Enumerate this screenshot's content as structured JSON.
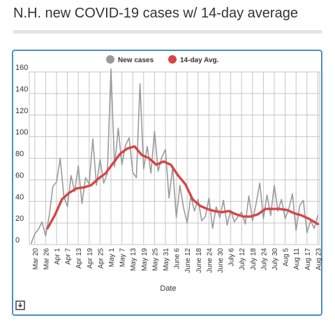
{
  "page": {
    "title": "N.H. new COVID-19 cases w/ 14-day average"
  },
  "icons": {
    "download": "download-icon"
  },
  "colors": {
    "frame": "#4a90c4",
    "new_cases": "#9a9a9a",
    "avg": "#d64545",
    "grid": "#c4c4c4",
    "title_rule": "#e3e3e3"
  },
  "chart_data": {
    "type": "line",
    "xlabel": "Date",
    "ylabel": "",
    "ylim": [
      0,
      160
    ],
    "yticks": [
      0,
      20,
      40,
      60,
      80,
      100,
      120,
      140,
      160
    ],
    "xlim": [
      "2020-03-17",
      "2020-08-24"
    ],
    "tick_dates": [
      "2020-03-20",
      "2020-03-26",
      "2020-04-01",
      "2020-04-07",
      "2020-04-13",
      "2020-04-19",
      "2020-04-25",
      "2020-05-01",
      "2020-05-07",
      "2020-05-13",
      "2020-05-19",
      "2020-05-25",
      "2020-05-31",
      "2020-06-06",
      "2020-06-12",
      "2020-06-18",
      "2020-06-24",
      "2020-06-30",
      "2020-07-06",
      "2020-07-12",
      "2020-07-18",
      "2020-07-24",
      "2020-07-30",
      "2020-08-05",
      "2020-08-11",
      "2020-08-17",
      "2020-08-23"
    ],
    "tick_labels": [
      "Mar 20",
      "Mar 26",
      "Apr 1",
      "Apr 7",
      "Apr 13",
      "Apr 19",
      "Apr 25",
      "May 1",
      "May 7",
      "May 13",
      "May 19",
      "May 25",
      "May 31",
      "June 6",
      "June 12",
      "June 18",
      "June 24",
      "June 30",
      "July 6",
      "July 12",
      "July 18",
      "July 24",
      "July 30",
      "Aug 5",
      "Aug 11",
      "Aug 17",
      "Aug 23"
    ],
    "grid": true,
    "legend_position": "top",
    "series": [
      {
        "name": "New cases",
        "color": "#9a9a9a",
        "points": [
          [
            "2020-03-18",
            1
          ],
          [
            "2020-03-20",
            10
          ],
          [
            "2020-03-22",
            14
          ],
          [
            "2020-03-24",
            21
          ],
          [
            "2020-03-26",
            8
          ],
          [
            "2020-03-28",
            27
          ],
          [
            "2020-03-30",
            54
          ],
          [
            "2020-04-01",
            58
          ],
          [
            "2020-04-03",
            80
          ],
          [
            "2020-04-05",
            45
          ],
          [
            "2020-04-07",
            35
          ],
          [
            "2020-04-09",
            64
          ],
          [
            "2020-04-11",
            49
          ],
          [
            "2020-04-13",
            73
          ],
          [
            "2020-04-15",
            38
          ],
          [
            "2020-04-17",
            62
          ],
          [
            "2020-04-19",
            56
          ],
          [
            "2020-04-21",
            98
          ],
          [
            "2020-04-23",
            55
          ],
          [
            "2020-04-25",
            79
          ],
          [
            "2020-04-27",
            57
          ],
          [
            "2020-04-29",
            66
          ],
          [
            "2020-05-01",
            163
          ],
          [
            "2020-05-03",
            72
          ],
          [
            "2020-05-05",
            108
          ],
          [
            "2020-05-07",
            74
          ],
          [
            "2020-05-09",
            92
          ],
          [
            "2020-05-11",
            99
          ],
          [
            "2020-05-13",
            67
          ],
          [
            "2020-05-15",
            62
          ],
          [
            "2020-05-17",
            149
          ],
          [
            "2020-05-19",
            70
          ],
          [
            "2020-05-21",
            91
          ],
          [
            "2020-05-23",
            66
          ],
          [
            "2020-05-25",
            105
          ],
          [
            "2020-05-27",
            68
          ],
          [
            "2020-05-29",
            81
          ],
          [
            "2020-05-31",
            88
          ],
          [
            "2020-06-02",
            43
          ],
          [
            "2020-06-04",
            72
          ],
          [
            "2020-06-06",
            25
          ],
          [
            "2020-06-08",
            55
          ],
          [
            "2020-06-10",
            34
          ],
          [
            "2020-06-12",
            20
          ],
          [
            "2020-06-14",
            45
          ],
          [
            "2020-06-16",
            31
          ],
          [
            "2020-06-18",
            42
          ],
          [
            "2020-06-20",
            22
          ],
          [
            "2020-06-22",
            26
          ],
          [
            "2020-06-24",
            43
          ],
          [
            "2020-06-26",
            15
          ],
          [
            "2020-06-28",
            35
          ],
          [
            "2020-06-30",
            25
          ],
          [
            "2020-07-02",
            41
          ],
          [
            "2020-07-04",
            18
          ],
          [
            "2020-07-06",
            32
          ],
          [
            "2020-07-08",
            21
          ],
          [
            "2020-07-10",
            26
          ],
          [
            "2020-07-12",
            30
          ],
          [
            "2020-07-14",
            19
          ],
          [
            "2020-07-16",
            45
          ],
          [
            "2020-07-18",
            22
          ],
          [
            "2020-07-20",
            38
          ],
          [
            "2020-07-22",
            57
          ],
          [
            "2020-07-24",
            24
          ],
          [
            "2020-07-26",
            46
          ],
          [
            "2020-07-28",
            27
          ],
          [
            "2020-07-30",
            55
          ],
          [
            "2020-08-01",
            31
          ],
          [
            "2020-08-03",
            42
          ],
          [
            "2020-08-05",
            24
          ],
          [
            "2020-08-07",
            33
          ],
          [
            "2020-08-09",
            47
          ],
          [
            "2020-08-11",
            13
          ],
          [
            "2020-08-13",
            36
          ],
          [
            "2020-08-15",
            41
          ],
          [
            "2020-08-17",
            11
          ],
          [
            "2020-08-19",
            22
          ],
          [
            "2020-08-21",
            15
          ],
          [
            "2020-08-23",
            27
          ]
        ]
      },
      {
        "name": "14-day Avg.",
        "color": "#d64545",
        "points": [
          [
            "2020-03-27",
            15
          ],
          [
            "2020-03-31",
            27
          ],
          [
            "2020-04-04",
            42
          ],
          [
            "2020-04-08",
            48
          ],
          [
            "2020-04-12",
            52
          ],
          [
            "2020-04-16",
            53
          ],
          [
            "2020-04-20",
            55
          ],
          [
            "2020-04-24",
            61
          ],
          [
            "2020-04-28",
            66
          ],
          [
            "2020-05-02",
            75
          ],
          [
            "2020-05-06",
            84
          ],
          [
            "2020-05-10",
            89
          ],
          [
            "2020-05-14",
            91
          ],
          [
            "2020-05-18",
            83
          ],
          [
            "2020-05-22",
            80
          ],
          [
            "2020-05-26",
            74
          ],
          [
            "2020-05-30",
            77
          ],
          [
            "2020-06-03",
            74
          ],
          [
            "2020-06-07",
            64
          ],
          [
            "2020-06-11",
            56
          ],
          [
            "2020-06-15",
            42
          ],
          [
            "2020-06-19",
            36
          ],
          [
            "2020-06-23",
            33
          ],
          [
            "2020-06-27",
            31
          ],
          [
            "2020-07-01",
            30
          ],
          [
            "2020-07-05",
            31
          ],
          [
            "2020-07-09",
            28
          ],
          [
            "2020-07-13",
            26
          ],
          [
            "2020-07-17",
            26
          ],
          [
            "2020-07-21",
            28
          ],
          [
            "2020-07-25",
            33
          ],
          [
            "2020-07-29",
            33
          ],
          [
            "2020-08-02",
            33
          ],
          [
            "2020-08-06",
            32
          ],
          [
            "2020-08-10",
            29
          ],
          [
            "2020-08-14",
            27
          ],
          [
            "2020-08-18",
            24
          ],
          [
            "2020-08-23",
            19
          ]
        ]
      }
    ]
  }
}
